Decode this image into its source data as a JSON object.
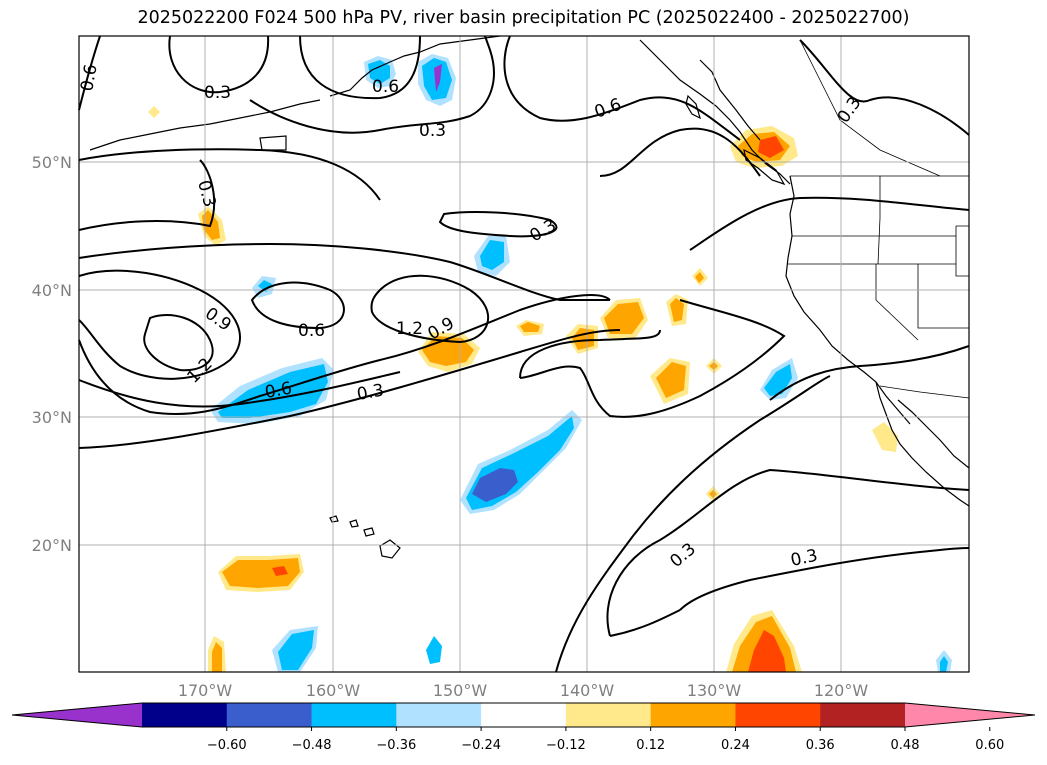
{
  "title": "2025022200 F024 500 hPa PV, river basin precipitation PC (2025022400 - 2025022700)",
  "lat_labels": [
    "50°N",
    "40°N",
    "30°N",
    "20°N"
  ],
  "lon_labels": [
    "170°W",
    "160°W",
    "150°W",
    "140°W",
    "130°W",
    "120°W"
  ],
  "contour_labels": [
    "0.3",
    "0.6",
    "0.9",
    "1.2"
  ],
  "colorbar": {
    "ticks": [
      "−0.60",
      "−0.48",
      "−0.36",
      "−0.24",
      "−0.12",
      "0.12",
      "0.24",
      "0.36",
      "0.48",
      "0.60"
    ],
    "colors": [
      "#9932cc",
      "#00008b",
      "#3a5fcd",
      "#00bfff",
      "#b0e2ff",
      "#ffffff",
      "#ffe98a",
      "#ffa500",
      "#ff4500",
      "#b22222",
      "#ff88aa"
    ]
  },
  "colors": {
    "light_blue": "#b0e2ff",
    "blue": "#00bfff",
    "royal_blue": "#3a5fcd",
    "purple": "#9932cc",
    "light_yellow": "#ffe98a",
    "orange": "#ffa500",
    "red_orange": "#ff4500",
    "grid": "#b0b0b0",
    "contour": "#000000"
  }
}
